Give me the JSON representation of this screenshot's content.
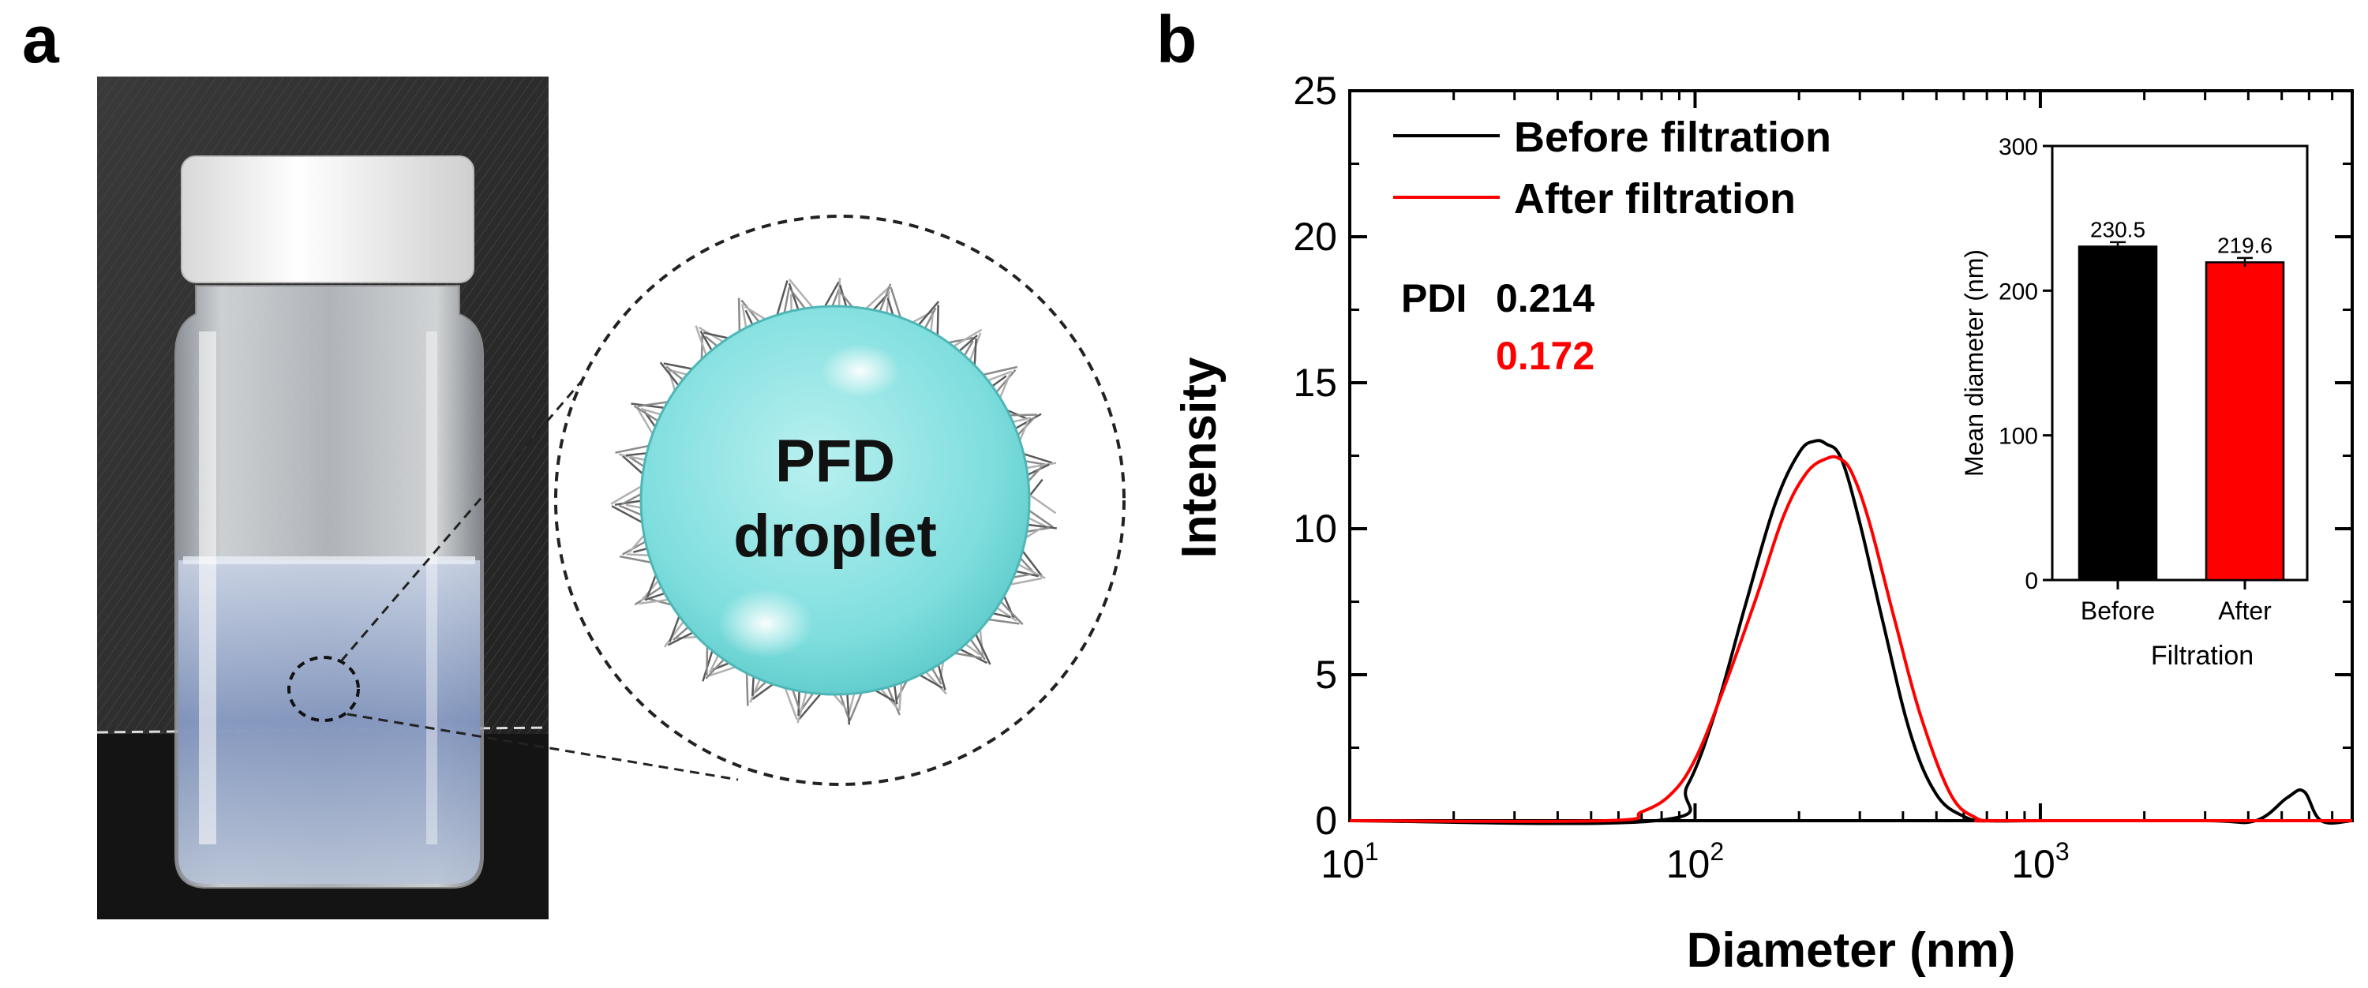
{
  "panels": {
    "a": {
      "letter": "a",
      "droplet_label_line1": "PFD",
      "droplet_label_line2": "droplet"
    },
    "b": {
      "letter": "b"
    }
  },
  "chart_data": [
    {
      "type": "line",
      "xlabel": "Diameter (nm)",
      "ylabel": "Intensity",
      "xscale": "log",
      "xlim": [
        10,
        8000
      ],
      "ylim": [
        0,
        25
      ],
      "yticks": [
        0,
        5,
        10,
        15,
        20,
        25
      ],
      "xticks": [
        10,
        100,
        1000
      ],
      "xtick_labels": [
        {
          "base": "10",
          "exp": "1"
        },
        {
          "base": "10",
          "exp": "2"
        },
        {
          "base": "10",
          "exp": "3"
        }
      ],
      "legend_position": "top-left",
      "grid": false,
      "series": [
        {
          "name": "Before filtration",
          "color": "#000000",
          "x": [
            10,
            77,
            95,
            115,
            140,
            170,
            200,
            222,
            240,
            265,
            300,
            350,
            420,
            500,
            600,
            700,
            1000,
            3000,
            4200,
            5200,
            5800,
            6500,
            8000
          ],
          "y": [
            0,
            0,
            1.2,
            3.8,
            7.4,
            10.8,
            12.6,
            13.0,
            12.9,
            12.4,
            10.2,
            6.8,
            3.0,
            0.9,
            0.15,
            0,
            0,
            0,
            0,
            0.8,
            1.0,
            0,
            0
          ]
        },
        {
          "name": "After filtration",
          "color": "#ff0000",
          "x": [
            10,
            55,
            70,
            85,
            100,
            120,
            150,
            180,
            210,
            240,
            262,
            285,
            320,
            380,
            450,
            550,
            650,
            730,
            800,
            8000
          ],
          "y": [
            0,
            0,
            0.3,
            0.9,
            2.1,
            4.4,
            7.6,
            10.4,
            11.9,
            12.4,
            12.4,
            11.9,
            10.2,
            6.8,
            3.6,
            0.9,
            0.1,
            0,
            0,
            0
          ]
        }
      ],
      "annotations": {
        "pdi_label": "PDI",
        "pdi_before": "0.214",
        "pdi_after": "0.172",
        "pdi_before_color": "#000000",
        "pdi_after_color": "#ff0000"
      }
    },
    {
      "type": "bar",
      "xlabel": "Filtration",
      "ylabel": "Mean diameter (nm)",
      "ylim": [
        0,
        300
      ],
      "yticks": [
        0,
        100,
        200,
        300
      ],
      "categories": [
        "Before",
        "After"
      ],
      "values": [
        230.5,
        219.6
      ],
      "data_labels": [
        "230.5",
        "219.6"
      ],
      "error": [
        3,
        3
      ],
      "colors": [
        "#000000",
        "#ff0000"
      ]
    }
  ]
}
